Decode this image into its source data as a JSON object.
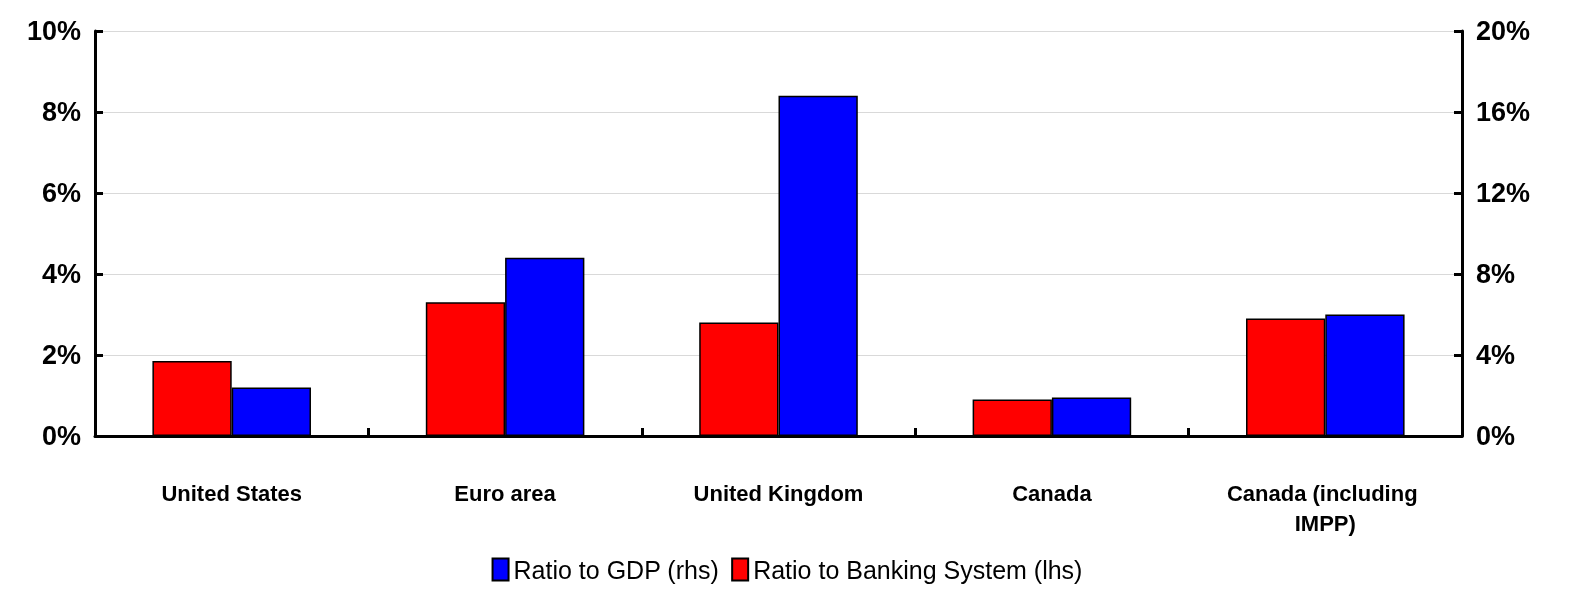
{
  "chart_data": {
    "type": "bar",
    "categories": [
      "United States",
      "Euro area",
      "United Kingdom",
      "Canada",
      "Canada (including IMPP)"
    ],
    "series": [
      {
        "name": "Ratio to Banking System (lhs)",
        "color": "#ff0000",
        "values": [
          1.85,
          3.3,
          2.8,
          0.9,
          2.9
        ]
      },
      {
        "name": "Ratio to GDP (rhs)",
        "color": "#0000ff",
        "axis": "y2",
        "values": [
          2.4,
          8.8,
          16.8,
          1.9,
          6.0
        ]
      }
    ],
    "ylim": [
      0,
      10
    ],
    "yticks": [
      {
        "value": 0,
        "label": "0%"
      },
      {
        "value": 2,
        "label": "2%"
      },
      {
        "value": 4,
        "label": "4%"
      },
      {
        "value": 6,
        "label": "6%"
      },
      {
        "value": 8,
        "label": "8%"
      },
      {
        "value": 10,
        "label": "10%"
      }
    ],
    "y2lim": [
      0,
      20
    ],
    "y2ticks": [
      {
        "value": 0,
        "label": "0%"
      },
      {
        "value": 4,
        "label": "4%"
      },
      {
        "value": 8,
        "label": "8%"
      },
      {
        "value": 12,
        "label": "12%"
      },
      {
        "value": 16,
        "label": "16%"
      },
      {
        "value": 20,
        "label": "20%"
      }
    ],
    "grid": "y",
    "legend": "bottom"
  }
}
